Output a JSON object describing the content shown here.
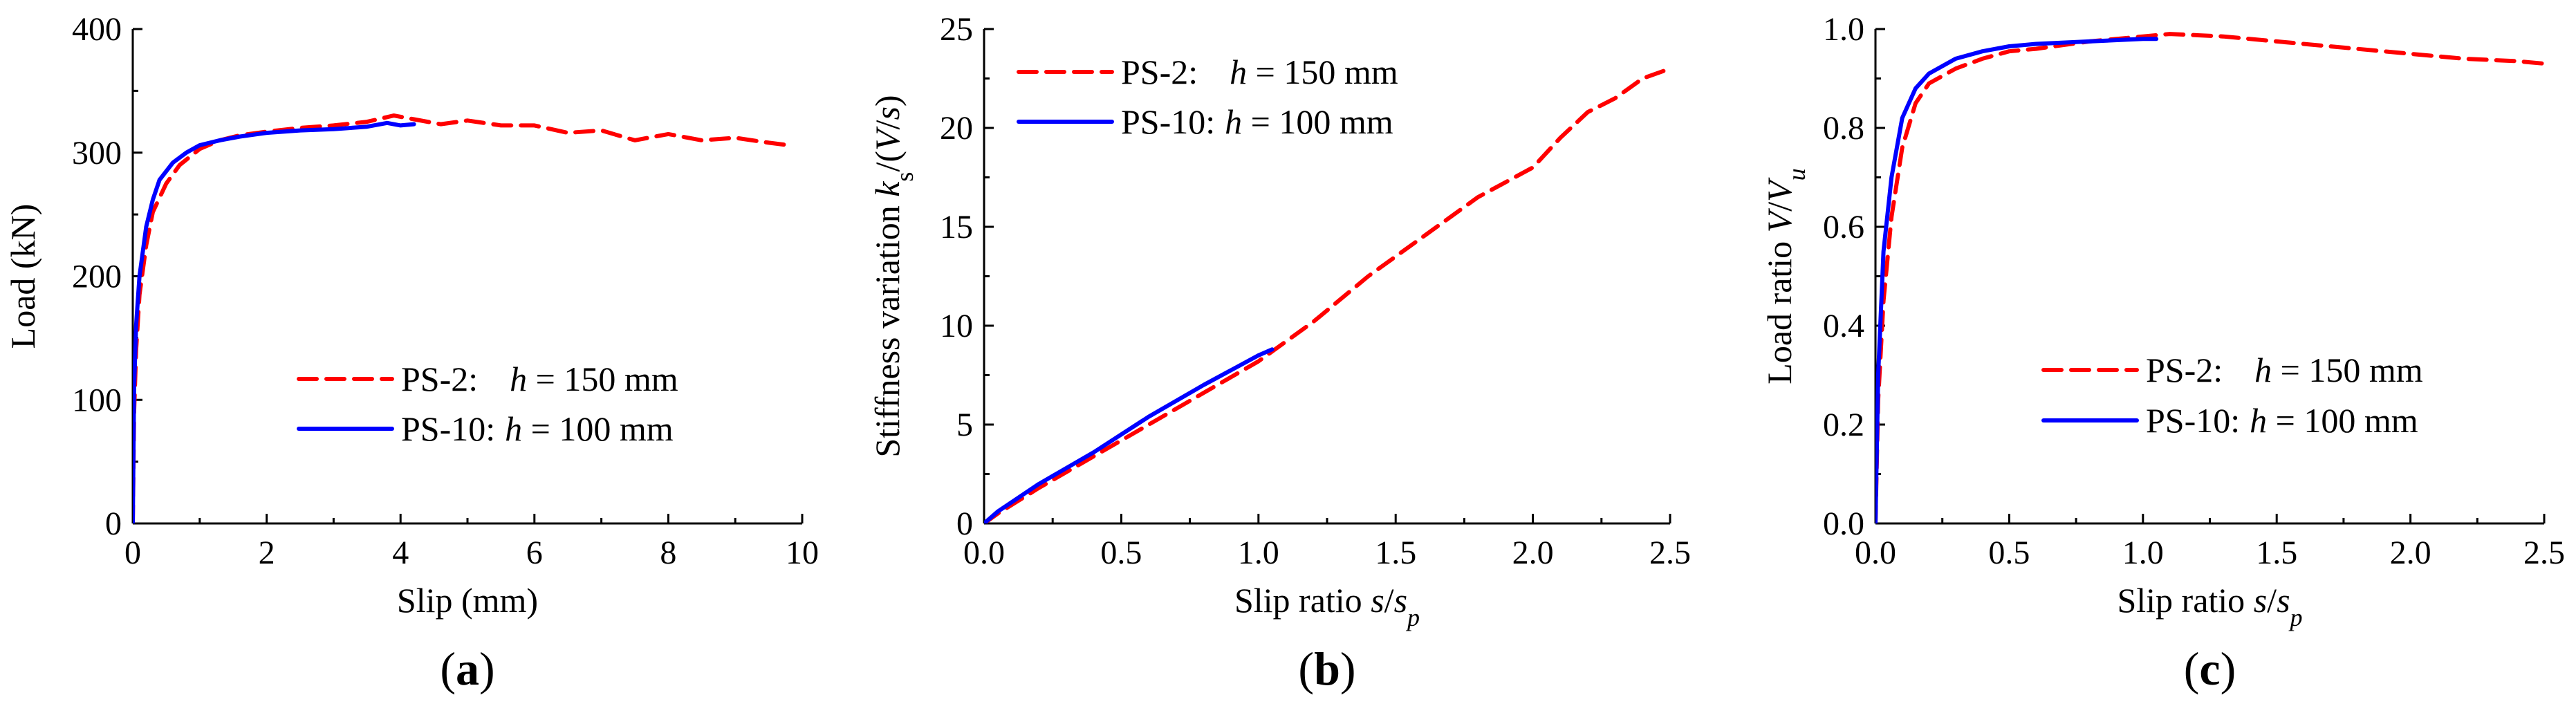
{
  "chart_data": [
    {
      "type": "line",
      "panel_label": "(a)",
      "panel_letter": "a",
      "xlabel": "Slip (mm)",
      "ylabel": "Load (kN)",
      "xlim": [
        0,
        10
      ],
      "ylim": [
        0,
        400
      ],
      "xticks": [
        0,
        2,
        4,
        6,
        8,
        10
      ],
      "yticks": [
        0,
        100,
        200,
        300,
        400
      ],
      "xtick_labels": [
        "0",
        "2",
        "4",
        "6",
        "8",
        "10"
      ],
      "ytick_labels": [
        "0",
        "100",
        "200",
        "300",
        "400"
      ],
      "legend_position": "center-right",
      "series": [
        {
          "name": "PS-2",
          "legend_label": "PS-2:",
          "legend_h": "h",
          "legend_value": " = 150 mm",
          "color": "#ff0000",
          "style": "dashed",
          "x": [
            0,
            0.02,
            0.05,
            0.1,
            0.2,
            0.3,
            0.5,
            0.7,
            1.0,
            1.3,
            1.6,
            2.0,
            2.5,
            3.0,
            3.5,
            3.9,
            4.2,
            4.6,
            5.0,
            5.5,
            6.0,
            6.5,
            7.0,
            7.5,
            8.0,
            8.5,
            9.0,
            9.5,
            9.8
          ],
          "y": [
            0,
            90,
            140,
            185,
            225,
            252,
            275,
            290,
            303,
            310,
            314,
            317,
            320,
            322,
            325,
            330,
            327,
            323,
            326,
            322,
            322,
            316,
            318,
            310,
            315,
            310,
            312,
            308,
            306
          ]
        },
        {
          "name": "PS-10",
          "legend_label": "PS-10:",
          "legend_h": "h",
          "legend_value": " = 100 mm",
          "color": "#0000ff",
          "style": "solid",
          "x": [
            0,
            0.02,
            0.05,
            0.1,
            0.2,
            0.3,
            0.4,
            0.6,
            0.8,
            1.0,
            1.3,
            1.6,
            2.0,
            2.5,
            3.0,
            3.5,
            3.8,
            4.0,
            4.2
          ],
          "y": [
            0,
            110,
            160,
            200,
            240,
            262,
            278,
            292,
            300,
            306,
            310,
            313,
            316,
            318,
            319,
            321,
            324,
            322,
            323
          ]
        }
      ]
    },
    {
      "type": "line",
      "panel_label": "(b)",
      "panel_letter": "b",
      "xlabel": "Slip ratio s/sp",
      "xlabel_parts": [
        "Slip ratio ",
        "s",
        "/",
        "s",
        "p"
      ],
      "ylabel": "Stiffness variation ks/(V/s)",
      "ylabel_parts": [
        "Stiffness variation ",
        "k",
        "s",
        "/(",
        "V",
        "/",
        "s",
        ")"
      ],
      "xlim": [
        0,
        2.5
      ],
      "ylim": [
        0,
        25
      ],
      "xticks": [
        0,
        0.5,
        1.0,
        1.5,
        2.0,
        2.5
      ],
      "yticks": [
        0,
        5,
        10,
        15,
        20,
        25
      ],
      "xtick_labels": [
        "0.0",
        "0.5",
        "1.0",
        "1.5",
        "2.0",
        "2.5"
      ],
      "ytick_labels": [
        "0",
        "5",
        "10",
        "15",
        "20",
        "25"
      ],
      "legend_position": "top-left",
      "series": [
        {
          "name": "PS-2",
          "legend_label": "PS-2:",
          "legend_h": "h",
          "legend_value": " = 150 mm",
          "color": "#ff0000",
          "style": "dashed",
          "x": [
            0,
            0.05,
            0.2,
            0.4,
            0.6,
            0.8,
            1.0,
            1.2,
            1.4,
            1.6,
            1.8,
            2.0,
            2.1,
            2.2,
            2.3,
            2.4,
            2.5
          ],
          "y": [
            0,
            0.5,
            1.8,
            3.4,
            5.0,
            6.6,
            8.2,
            10.2,
            12.5,
            14.5,
            16.5,
            18.0,
            19.5,
            20.8,
            21.5,
            22.5,
            23.0
          ]
        },
        {
          "name": "PS-10",
          "legend_label": "PS-10:",
          "legend_h": "h",
          "legend_value": " = 100 mm",
          "color": "#0000ff",
          "style": "solid",
          "x": [
            0,
            0.05,
            0.2,
            0.4,
            0.6,
            0.8,
            1.0,
            1.05
          ],
          "y": [
            0,
            0.6,
            2.0,
            3.6,
            5.4,
            7.0,
            8.5,
            8.8
          ]
        }
      ]
    },
    {
      "type": "line",
      "panel_label": "(c)",
      "panel_letter": "c",
      "xlabel": "Slip ratio s/sp",
      "xlabel_parts": [
        "Slip ratio ",
        "s",
        "/",
        "s",
        "p"
      ],
      "ylabel": "Load ratio V/Vu",
      "ylabel_parts": [
        "Load ratio ",
        "V",
        "/",
        "V",
        "u"
      ],
      "xlim": [
        0,
        2.5
      ],
      "ylim": [
        0,
        1.0
      ],
      "xticks": [
        0,
        0.5,
        1.0,
        1.5,
        2.0,
        2.5
      ],
      "yticks": [
        0,
        0.2,
        0.4,
        0.6,
        0.8,
        1.0
      ],
      "xtick_labels": [
        "0.0",
        "0.5",
        "1.0",
        "1.5",
        "2.0",
        "2.5"
      ],
      "ytick_labels": [
        "0.0",
        "0.2",
        "0.4",
        "0.6",
        "0.8",
        "1.0"
      ],
      "legend_position": "center-right",
      "series": [
        {
          "name": "PS-2",
          "legend_label": "PS-2:",
          "legend_h": "h",
          "legend_value": " = 150 mm",
          "color": "#ff0000",
          "style": "dashed",
          "x": [
            0,
            0.01,
            0.03,
            0.06,
            0.1,
            0.15,
            0.2,
            0.3,
            0.4,
            0.5,
            0.6,
            0.8,
            1.0,
            1.1,
            1.3,
            1.5,
            1.8,
            2.0,
            2.2,
            2.4,
            2.5
          ],
          "y": [
            0,
            0.25,
            0.45,
            0.62,
            0.76,
            0.85,
            0.89,
            0.92,
            0.94,
            0.955,
            0.96,
            0.975,
            0.985,
            0.99,
            0.985,
            0.975,
            0.96,
            0.95,
            0.94,
            0.935,
            0.93
          ]
        },
        {
          "name": "PS-10",
          "legend_label": "PS-10:",
          "legend_h": "h",
          "legend_value": " = 100 mm",
          "color": "#0000ff",
          "style": "solid",
          "x": [
            0,
            0.01,
            0.03,
            0.06,
            0.1,
            0.15,
            0.2,
            0.3,
            0.4,
            0.5,
            0.6,
            0.8,
            1.0,
            1.05
          ],
          "y": [
            0,
            0.3,
            0.55,
            0.7,
            0.82,
            0.88,
            0.91,
            0.94,
            0.955,
            0.965,
            0.97,
            0.975,
            0.98,
            0.98
          ]
        }
      ]
    }
  ]
}
